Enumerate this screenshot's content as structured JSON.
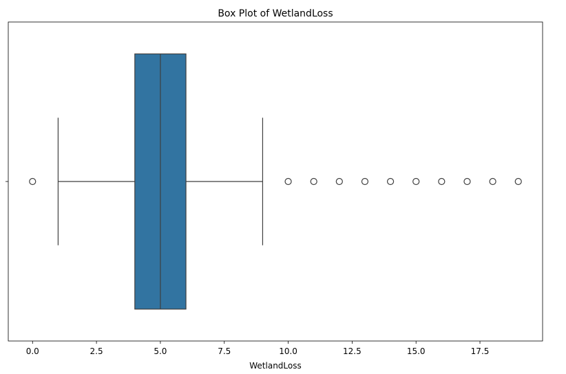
{
  "chart_data": {
    "type": "box",
    "title": "Box Plot of WetlandLoss",
    "xlabel": "WetlandLoss",
    "color": "#3274a1",
    "boxes": [
      {
        "min": 1,
        "q1": 4,
        "median": 5,
        "q3": 6,
        "max": 9,
        "outliers": [
          0,
          10,
          11,
          12,
          13,
          14,
          15,
          16,
          17,
          18,
          19
        ]
      }
    ],
    "xlim": [
      -0.95,
      19.95
    ],
    "xticks": [
      {
        "value": 0,
        "label": "0.0"
      },
      {
        "value": 2.5,
        "label": "2.5"
      },
      {
        "value": 5,
        "label": "5.0"
      },
      {
        "value": 7.5,
        "label": "7.5"
      },
      {
        "value": 10,
        "label": "10.0"
      },
      {
        "value": 12.5,
        "label": "12.5"
      },
      {
        "value": 15,
        "label": "15.0"
      },
      {
        "value": 17.5,
        "label": "17.5"
      }
    ]
  }
}
